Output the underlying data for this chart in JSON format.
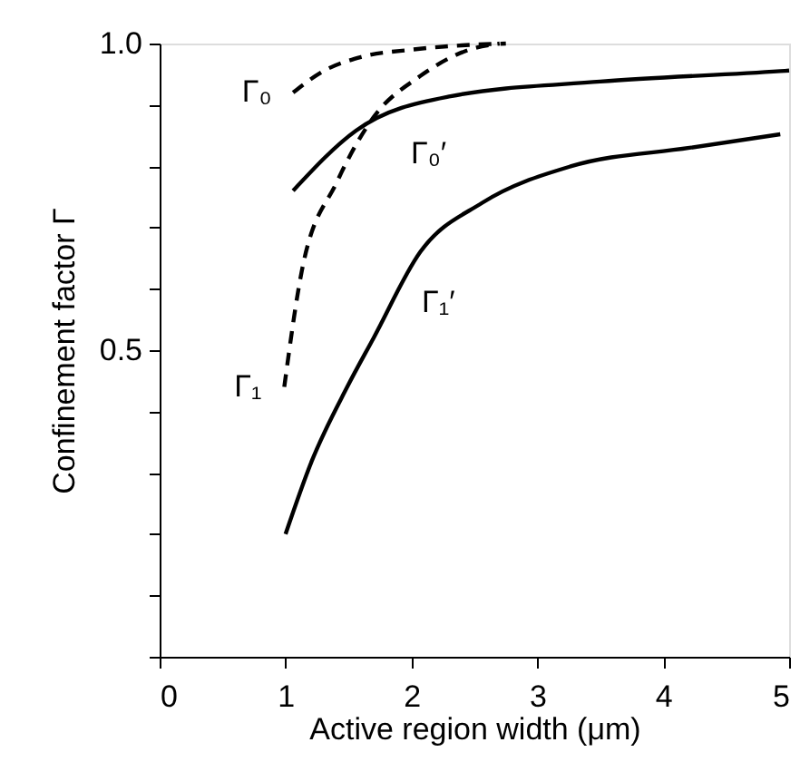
{
  "chart_data": {
    "type": "line",
    "xlabel": "Active region width (μm)",
    "ylabel": "Confinement factor Γ",
    "xlim": [
      0,
      5
    ],
    "xticks": [
      0,
      1,
      2,
      3,
      4,
      5
    ],
    "ylim": [
      0,
      1.0
    ],
    "yticks": [
      {
        "value": 0,
        "label": null
      },
      {
        "value": 0.1,
        "label": null
      },
      {
        "value": 0.2,
        "label": null
      },
      {
        "value": 0.3,
        "label": null
      },
      {
        "value": 0.4,
        "label": null
      },
      {
        "value": 0.5,
        "label": "0.5"
      },
      {
        "value": 0.6,
        "label": null
      },
      {
        "value": 0.7,
        "label": null
      },
      {
        "value": 0.8,
        "label": null
      },
      {
        "value": 0.9,
        "label": null
      },
      {
        "value": 1.0,
        "label": "1.0"
      }
    ],
    "grid": false,
    "legend": false,
    "marker": "none",
    "series": [
      {
        "name": "Γ₀",
        "color": "#000000",
        "line_style": "dashed",
        "x": [
          1.06,
          1.3,
          1.6,
          2.0,
          2.4,
          2.75
        ],
        "values": [
          0.92,
          0.955,
          0.978,
          0.99,
          0.997,
          1.0
        ]
      },
      {
        "name": "Γ₀′",
        "color": "#000000",
        "line_style": "solid",
        "x": [
          1.06,
          1.56,
          2.31,
          3.5,
          4.93,
          5.0
        ],
        "values": [
          0.76,
          0.858,
          0.914,
          0.938,
          0.955,
          0.956
        ]
      },
      {
        "name": "Γ₁",
        "color": "#000000",
        "line_style": "dashed",
        "x": [
          0.99,
          1.13,
          1.41,
          1.7,
          2.07,
          2.46,
          2.7
        ],
        "values": [
          0.44,
          0.63,
          0.775,
          0.88,
          0.947,
          0.99,
          1.0
        ]
      },
      {
        "name": "Γ₁′",
        "color": "#000000",
        "line_style": "solid",
        "x": [
          1.0,
          1.21,
          1.49,
          1.7,
          2.07,
          2.56,
          3.27,
          4.21,
          4.93
        ],
        "values": [
          0.2,
          0.32,
          0.44,
          0.52,
          0.66,
          0.74,
          0.8,
          0.83,
          0.852
        ]
      }
    ]
  }
}
